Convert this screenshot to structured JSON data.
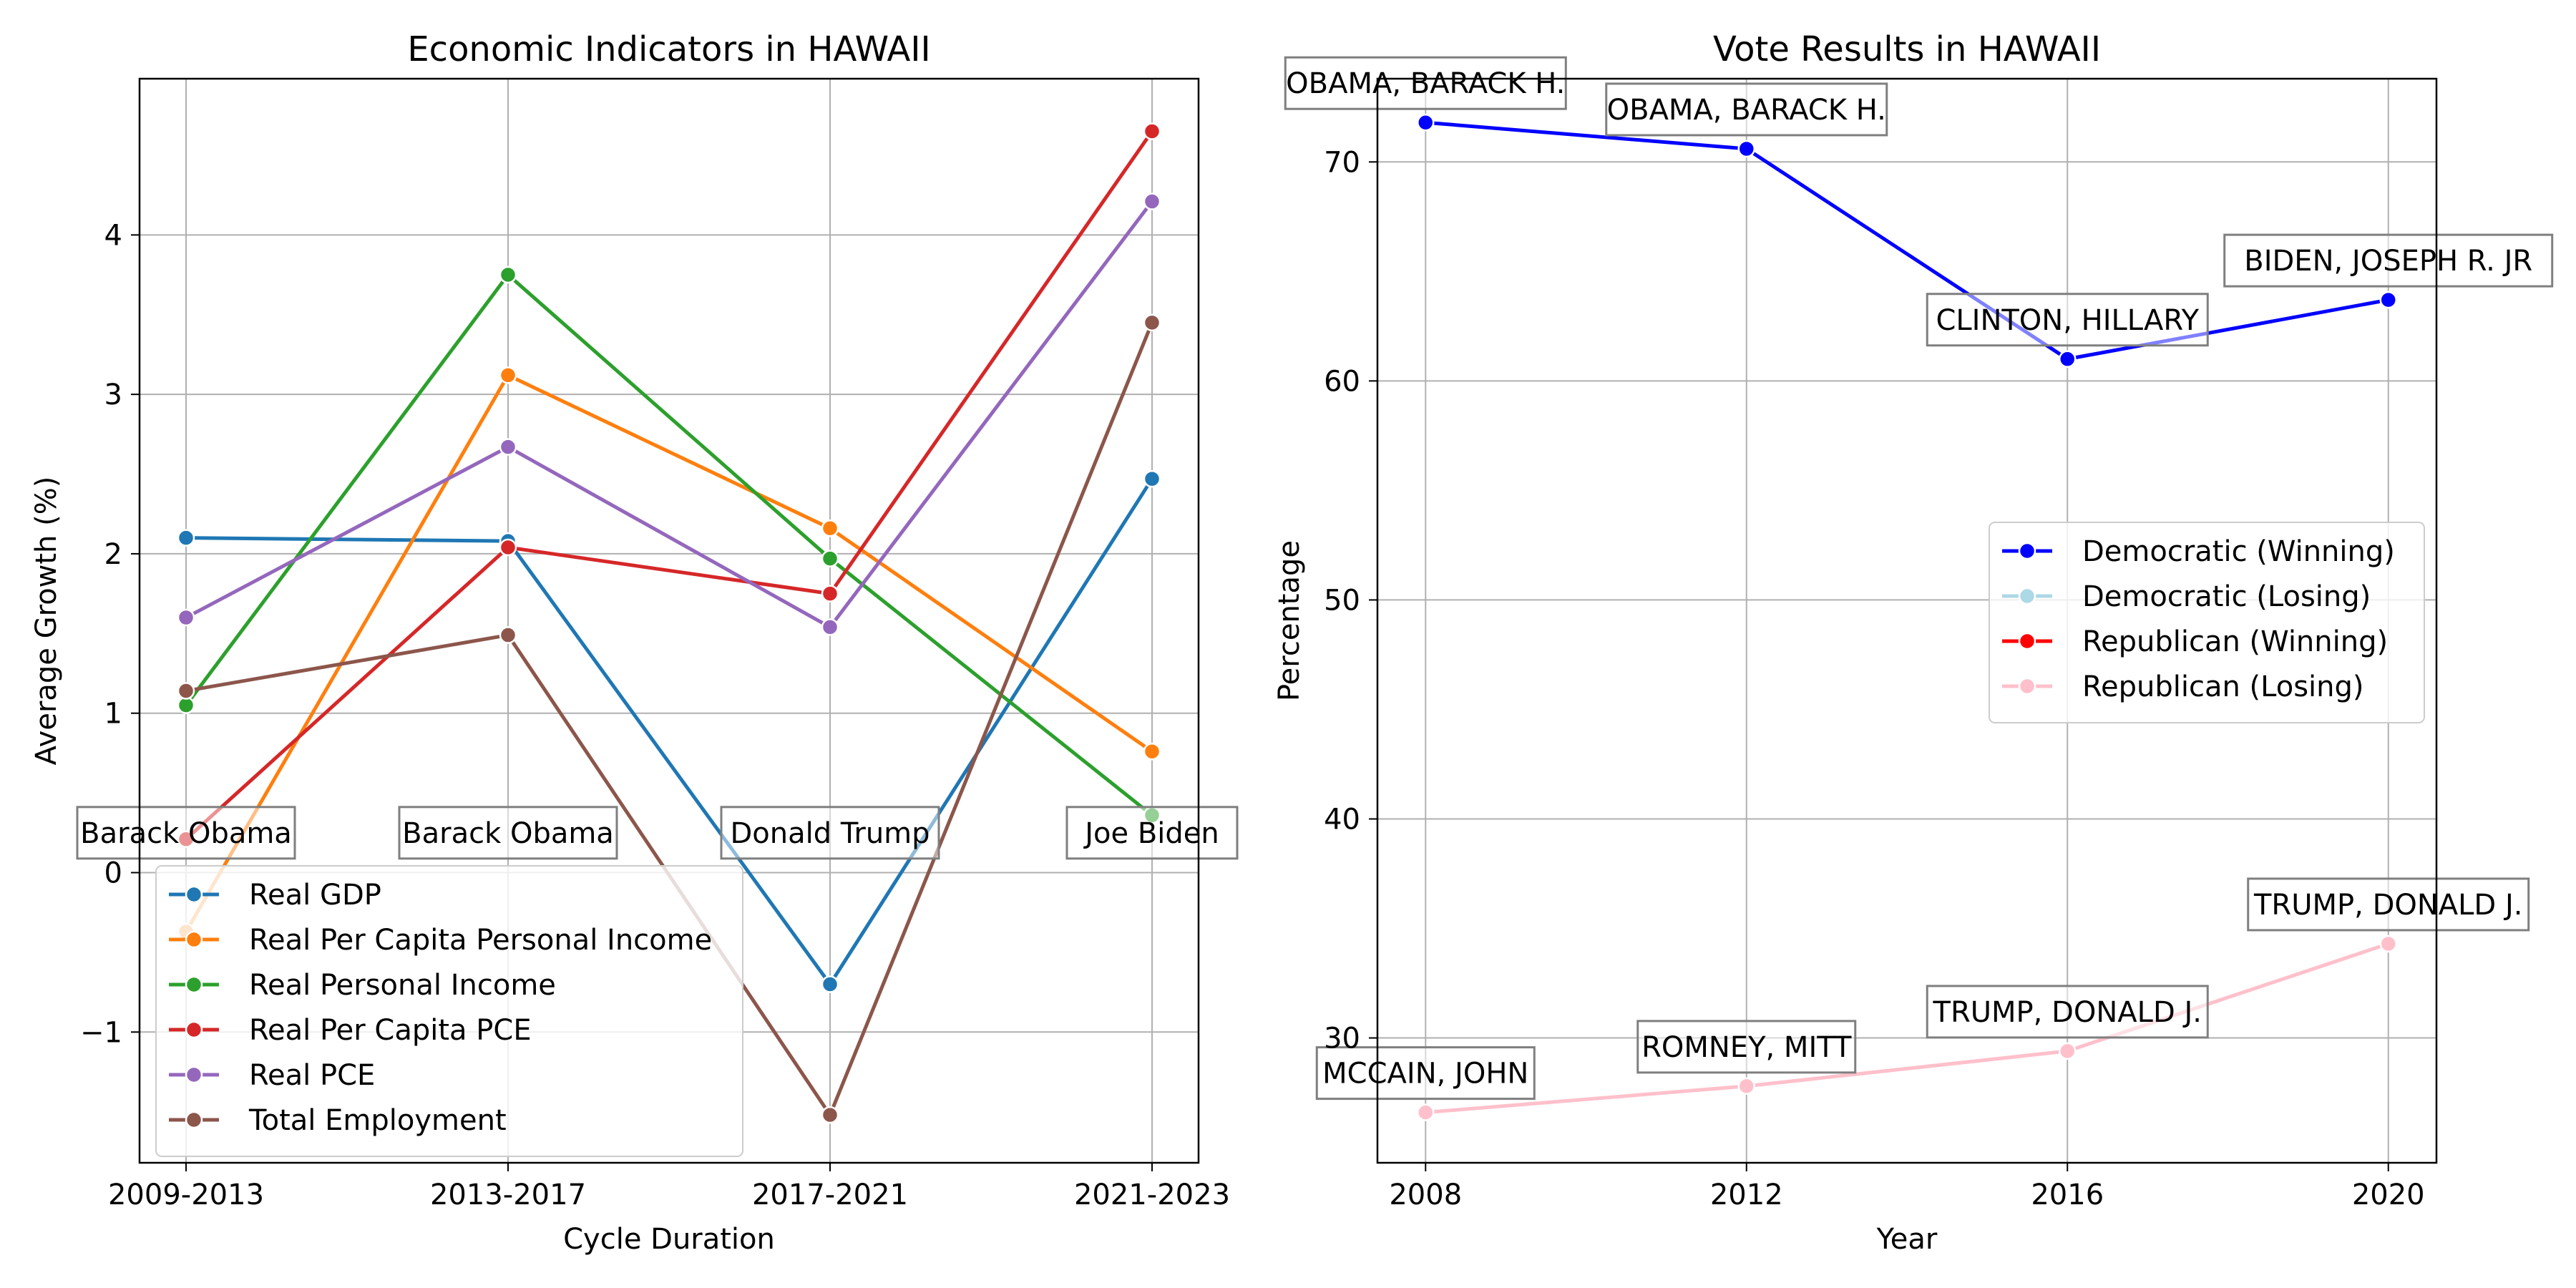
{
  "chart_data": [
    {
      "type": "line",
      "title": "Economic Indicators in HAWAII",
      "xlabel": "Cycle Duration",
      "ylabel": "Average Growth (%)",
      "categories": [
        "2009-2013",
        "2013-2017",
        "2017-2021",
        "2021-2023"
      ],
      "ylim": [
        -1.82,
        4.98
      ],
      "yticks": [
        -1,
        0,
        1,
        2,
        3,
        4
      ],
      "ytick_labels": [
        "−1",
        "0",
        "1",
        "2",
        "3",
        "4"
      ],
      "grid": true,
      "legend_position": "lower-left",
      "series": [
        {
          "name": "Real GDP",
          "color": "#1f77b4",
          "values": [
            2.1,
            2.08,
            -0.7,
            2.47
          ]
        },
        {
          "name": "Real Per Capita Personal Income",
          "color": "#ff7f0e",
          "values": [
            -0.37,
            3.12,
            2.16,
            0.76
          ]
        },
        {
          "name": "Real Personal Income",
          "color": "#2ca02c",
          "values": [
            1.05,
            3.75,
            1.97,
            0.36
          ]
        },
        {
          "name": "Real Per Capita PCE",
          "color": "#d62728",
          "values": [
            0.21,
            2.04,
            1.75,
            4.65
          ]
        },
        {
          "name": "Real PCE",
          "color": "#9467bd",
          "values": [
            1.6,
            2.67,
            1.54,
            4.21
          ]
        },
        {
          "name": "Total Employment",
          "color": "#8c564b",
          "values": [
            1.14,
            1.49,
            -1.52,
            3.45
          ]
        }
      ],
      "annotations": [
        {
          "category": "2009-2013",
          "text": "Barack Obama"
        },
        {
          "category": "2013-2017",
          "text": "Barack Obama"
        },
        {
          "category": "2017-2021",
          "text": "Donald Trump"
        },
        {
          "category": "2021-2023",
          "text": "Joe Biden"
        }
      ]
    },
    {
      "type": "line",
      "title": "Vote Results in HAWAII",
      "xlabel": "Year",
      "ylabel": "Percentage",
      "x": [
        2008,
        2012,
        2016,
        2020
      ],
      "xtick_labels": [
        "2008",
        "2012",
        "2016",
        "2020"
      ],
      "ylim": [
        24.3,
        73.8
      ],
      "yticks": [
        30,
        40,
        50,
        60,
        70
      ],
      "ytick_labels": [
        "30",
        "40",
        "50",
        "60",
        "70"
      ],
      "xlim": [
        2007.4,
        2020.6
      ],
      "grid": true,
      "legend_position": "center-right",
      "legend": [
        {
          "name": "Democratic (Winning)",
          "color": "#0000ff"
        },
        {
          "name": "Democratic (Losing)",
          "color": "#add8e6"
        },
        {
          "name": "Republican (Winning)",
          "color": "#ff0000"
        },
        {
          "name": "Republican (Losing)",
          "color": "#ffc0cb"
        }
      ],
      "series": [
        {
          "name": "Democratic (Winning)",
          "color": "#0000ff",
          "values": [
            71.8,
            70.6,
            61.0,
            63.7
          ],
          "labels": [
            "OBAMA, BARACK H.",
            "OBAMA, BARACK H.",
            "CLINTON, HILLARY",
            "BIDEN, JOSEPH R. JR"
          ]
        },
        {
          "name": "Republican (Losing)",
          "color": "#ffc0cb",
          "values": [
            26.6,
            27.8,
            29.4,
            34.3
          ],
          "labels": [
            "MCCAIN, JOHN",
            "ROMNEY, MITT",
            "TRUMP, DONALD J.",
            "TRUMP, DONALD J."
          ]
        }
      ]
    }
  ]
}
